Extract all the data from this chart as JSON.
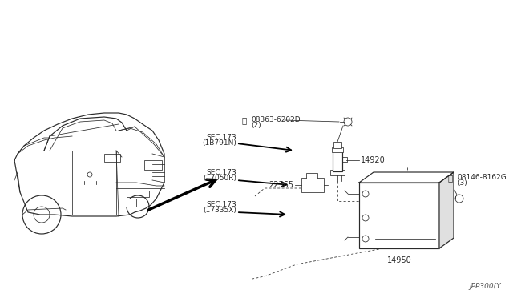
{
  "bg_color": "#ffffff",
  "line_color": "#2a2a2a",
  "figsize": [
    6.4,
    3.72
  ],
  "dpi": 100,
  "labels": {
    "part_08363": "08363-6202D",
    "part_08363_qty": "(2)",
    "sec173_1B791N_1": "SEC.173",
    "sec173_1B791N_2": "(1B791N)",
    "part_22365": "22365",
    "sec173_17050R_1": "SEC.173",
    "sec173_17050R_2": "(17050R)",
    "sec173_17335X_1": "SEC.173",
    "sec173_17335X_2": "(17335X)",
    "part_14920": "14920",
    "part_08146": "08146-8162G",
    "part_08146_qty": "(3)",
    "part_14950": "14950",
    "diagram_ref": "JPP300(Y"
  }
}
